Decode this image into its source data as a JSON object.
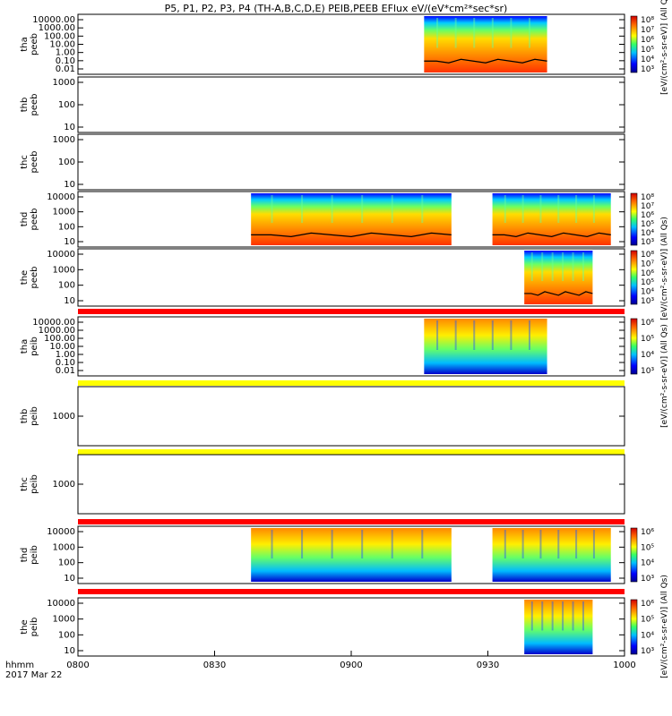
{
  "title": "P5, P1, P2, P3, P4 (TH-A,B,C,D,E) PEIB,PEEB EFlux eV/(eV*cm²*sec*sr)",
  "colorbar_label": "[eV/(cm²-s-sr-eV)] (All Qs)",
  "colors": {
    "background": "#ffffff",
    "frame": "#000000",
    "band_red": "#ff0000",
    "band_yellow": "#ffff00"
  },
  "chart_data": {
    "type": "heatmap",
    "x_axis": {
      "range": [
        "0800",
        "1000"
      ],
      "ticks": [
        "0800",
        "0830",
        "0900",
        "0930",
        "1000"
      ],
      "label": "hhmm",
      "date": "2017 Mar 22"
    },
    "panels": [
      {
        "id": "tha-peeb",
        "ylabel": [
          "tha",
          "peeb"
        ],
        "yscale": "log",
        "yticks": [
          "10000.00",
          "1000.00",
          "100.00",
          "10.00",
          "1.00",
          "0.10",
          "0.01"
        ],
        "colorbar_ticks": [
          "10⁸",
          "10⁷",
          "10⁶",
          "10⁵",
          "10⁴",
          "10³"
        ],
        "data_intervals": [
          [
            "0916",
            "0943"
          ]
        ],
        "overlay_line": true
      },
      {
        "id": "thb-peeb",
        "ylabel": [
          "thb",
          "peeb"
        ],
        "yscale": "log",
        "yticks": [
          "1000",
          "100",
          "10"
        ],
        "data_intervals": []
      },
      {
        "id": "thc-peeb",
        "ylabel": [
          "thc",
          "peeb"
        ],
        "yscale": "log",
        "yticks": [
          "1000",
          "100",
          "10"
        ],
        "data_intervals": []
      },
      {
        "id": "thd-peeb",
        "ylabel": [
          "thd",
          "peeb"
        ],
        "yscale": "log",
        "yticks": [
          "10000",
          "1000",
          "100",
          "10"
        ],
        "colorbar_ticks": [
          "10⁸",
          "10⁷",
          "10⁶",
          "10⁵",
          "10⁴",
          "10³"
        ],
        "data_intervals": [
          [
            "0838",
            "0922"
          ],
          [
            "0931",
            "0957"
          ]
        ],
        "overlay_line": true
      },
      {
        "id": "the-peeb",
        "ylabel": [
          "the",
          "peeb"
        ],
        "yscale": "log",
        "yticks": [
          "10000",
          "1000",
          "100",
          "10"
        ],
        "colorbar_ticks": [
          "10⁸",
          "10⁷",
          "10⁶",
          "10⁵",
          "10⁴",
          "10³"
        ],
        "data_intervals": [
          [
            "0938",
            "0953"
          ]
        ],
        "overlay_line": true
      },
      {
        "id": "tha-peib",
        "ylabel": [
          "tha",
          "peib"
        ],
        "yscale": "log",
        "yticks": [
          "10000.00",
          "1000.00",
          "100.00",
          "10.00",
          "1.00",
          "0.10",
          "0.01"
        ],
        "colorbar_ticks": [
          "10⁶",
          "10⁵",
          "10⁴",
          "10³"
        ],
        "data_intervals": [
          [
            "0916",
            "0943"
          ]
        ]
      },
      {
        "id": "thb-peib",
        "ylabel": [
          "thb",
          "peib"
        ],
        "yscale": "log",
        "yticks": [
          "1000"
        ],
        "data_intervals": []
      },
      {
        "id": "thc-peib",
        "ylabel": [
          "thc",
          "peib"
        ],
        "yscale": "log",
        "yticks": [
          "1000"
        ],
        "data_intervals": []
      },
      {
        "id": "thd-peib",
        "ylabel": [
          "thd",
          "peib"
        ],
        "yscale": "log",
        "yticks": [
          "10000",
          "1000",
          "100",
          "10"
        ],
        "colorbar_ticks": [
          "10⁶",
          "10⁵",
          "10⁴",
          "10³"
        ],
        "data_intervals": [
          [
            "0838",
            "0922"
          ],
          [
            "0931",
            "0957"
          ]
        ]
      },
      {
        "id": "the-peib",
        "ylabel": [
          "the",
          "peib"
        ],
        "yscale": "log",
        "yticks": [
          "10000",
          "1000",
          "100",
          "10"
        ],
        "colorbar_ticks": [
          "10⁶",
          "10⁵",
          "10⁴",
          "10³"
        ],
        "data_intervals": [
          [
            "0938",
            "0953"
          ]
        ]
      }
    ]
  }
}
